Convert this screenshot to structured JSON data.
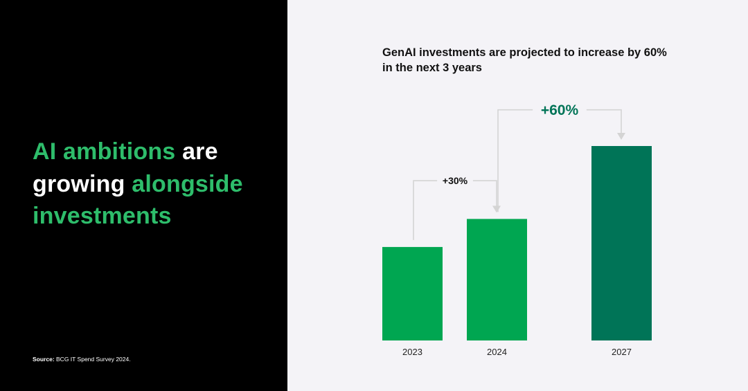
{
  "left": {
    "headline_parts": [
      {
        "text": "AI ambitions",
        "color": "green"
      },
      {
        "text": " are ",
        "color": "white"
      },
      {
        "text": "growing",
        "color": "white"
      },
      {
        "text": " alongside ",
        "color": "green"
      },
      {
        "text": "investments",
        "color": "green"
      }
    ],
    "source_label": "Source:",
    "source_text": " BCG IT Spend Survey 2024."
  },
  "colors": {
    "background_left": "#000000",
    "background_right": "#f4f3f7",
    "headline_green": "#2ebd6b",
    "bar_light_green": "#00a651",
    "bar_dark_green": "#007457",
    "annotation_green": "#007457",
    "connector_gray": "#d4d4d4"
  },
  "chart_data": {
    "type": "bar",
    "title": "GenAI investments are projected to increase by 60% in the next 3 years",
    "categories": [
      "2023",
      "2024",
      "2027"
    ],
    "values": [
      100,
      130,
      208
    ],
    "ylim": [
      0,
      208
    ],
    "grid": false,
    "legend": "none",
    "bar_colors": [
      "#00a651",
      "#00a651",
      "#007457"
    ],
    "annotations": [
      {
        "label": "+30%",
        "from": "2023",
        "to": "2024"
      },
      {
        "label": "+60%",
        "from": "2024",
        "to": "2027"
      }
    ]
  }
}
